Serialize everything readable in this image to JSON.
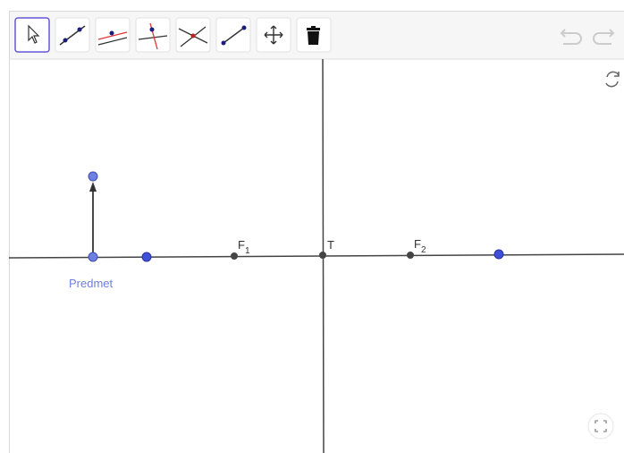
{
  "labels": [
    {
      "text": "F",
      "sub": "1"
    },
    {
      "text": "T"
    },
    {
      "text": "F",
      "sub": "2"
    },
    {
      "text": "Predmet"
    }
  ]
}
